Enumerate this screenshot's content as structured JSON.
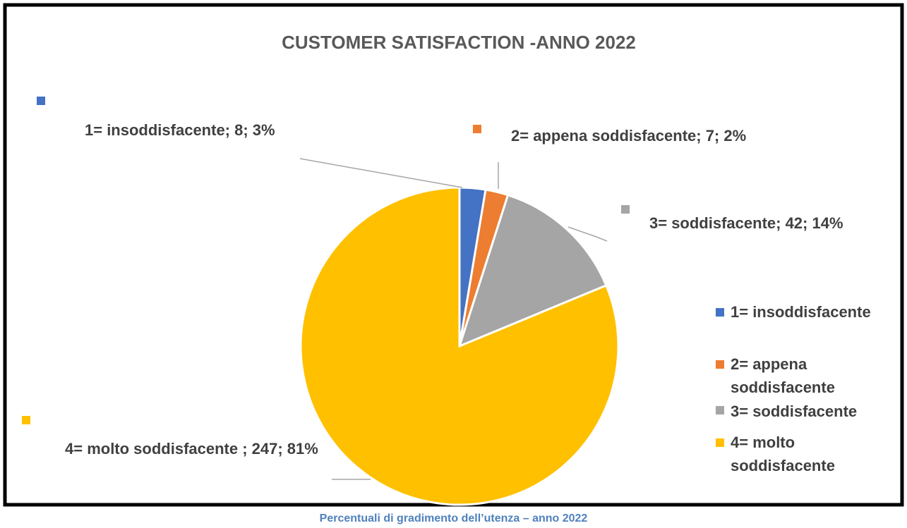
{
  "chart_data": {
    "type": "pie",
    "title": "CUSTOMER SATISFACTION -ANNO 2022",
    "categories": [
      "1= insoddisfacente",
      "2= appena soddisfacente",
      "3= soddisfacente",
      "4= molto soddisfacente"
    ],
    "values": [
      8,
      7,
      42,
      247
    ],
    "value_labels": [
      "1= insoddisfacente; 8; 3%",
      "2= appena soddisfacente; 7; 2%",
      "3= soddisfacente; 42; 14%",
      "4= molto soddisfacente ; 247; 81%"
    ],
    "colors": [
      "#4472c4",
      "#ed7d31",
      "#a5a5a5",
      "#ffc000"
    ],
    "legend": "right"
  },
  "caption": "Percentuali di gradimento dell’utenza – anno 2022"
}
